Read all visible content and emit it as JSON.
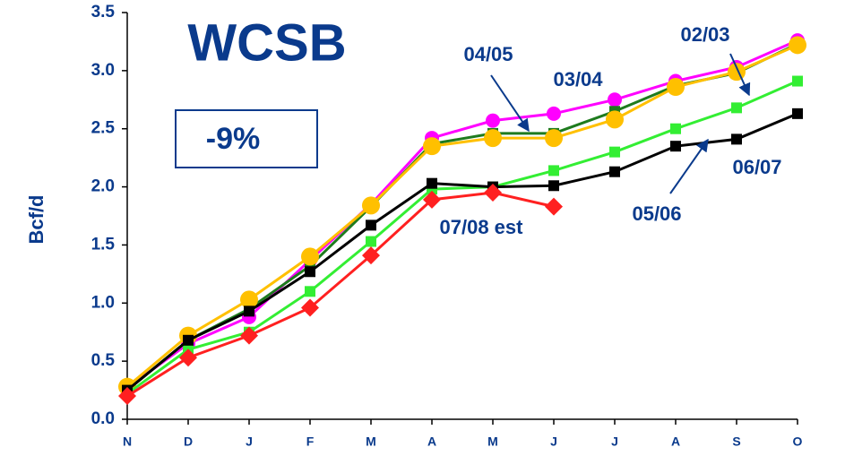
{
  "chart_data": {
    "type": "line",
    "title": "WCSB",
    "annotation": "-9%",
    "ylabel": "Bcf/d",
    "categories": [
      "N",
      "D",
      "J",
      "F",
      "M",
      "A",
      "M",
      "J",
      "J",
      "A",
      "S",
      "O"
    ],
    "ylim": [
      0,
      3.5
    ],
    "yticks": [
      {
        "value": 0,
        "label": "0.0"
      },
      0.5,
      {
        "value": 1,
        "label": "1.0"
      },
      1.5,
      {
        "value": 2,
        "label": "2.0"
      },
      2.5,
      {
        "value": 3,
        "label": "3.0"
      },
      3.5
    ],
    "series": [
      {
        "name": "03/04",
        "color": "#ff00ff",
        "marker": "circle",
        "values": [
          0.27,
          0.65,
          0.88,
          1.37,
          1.85,
          2.42,
          2.57,
          2.63,
          2.75,
          2.91,
          3.03,
          3.26
        ]
      },
      {
        "name": "04/05",
        "color": "#1e7b1e",
        "marker": "square",
        "values": [
          0.25,
          0.68,
          0.95,
          1.32,
          1.83,
          2.37,
          2.46,
          2.46,
          2.65,
          2.87,
          2.98,
          3.23
        ]
      },
      {
        "name": "05/06",
        "color": "#ffc000",
        "marker": "circle",
        "values": [
          0.28,
          0.72,
          1.03,
          1.4,
          1.84,
          2.35,
          2.42,
          2.42,
          2.58,
          2.86,
          2.99,
          3.22
        ]
      },
      {
        "name": "02/03",
        "color": "#33ee33",
        "marker": "square",
        "values": [
          0.22,
          0.6,
          0.75,
          1.1,
          1.53,
          1.98,
          2.0,
          2.14,
          2.3,
          2.5,
          2.68,
          2.91
        ]
      },
      {
        "name": "06/07",
        "color": "#000000",
        "marker": "square",
        "values": [
          0.25,
          0.68,
          0.93,
          1.27,
          1.67,
          2.03,
          2.0,
          2.01,
          2.13,
          2.35,
          2.41,
          2.63
        ]
      },
      {
        "name": "07/08 est",
        "color": "#ff2020",
        "marker": "diamond",
        "values": [
          0.2,
          0.53,
          0.72,
          0.96,
          1.41,
          1.89,
          1.95,
          1.83,
          null,
          null,
          null,
          null
        ]
      }
    ]
  }
}
